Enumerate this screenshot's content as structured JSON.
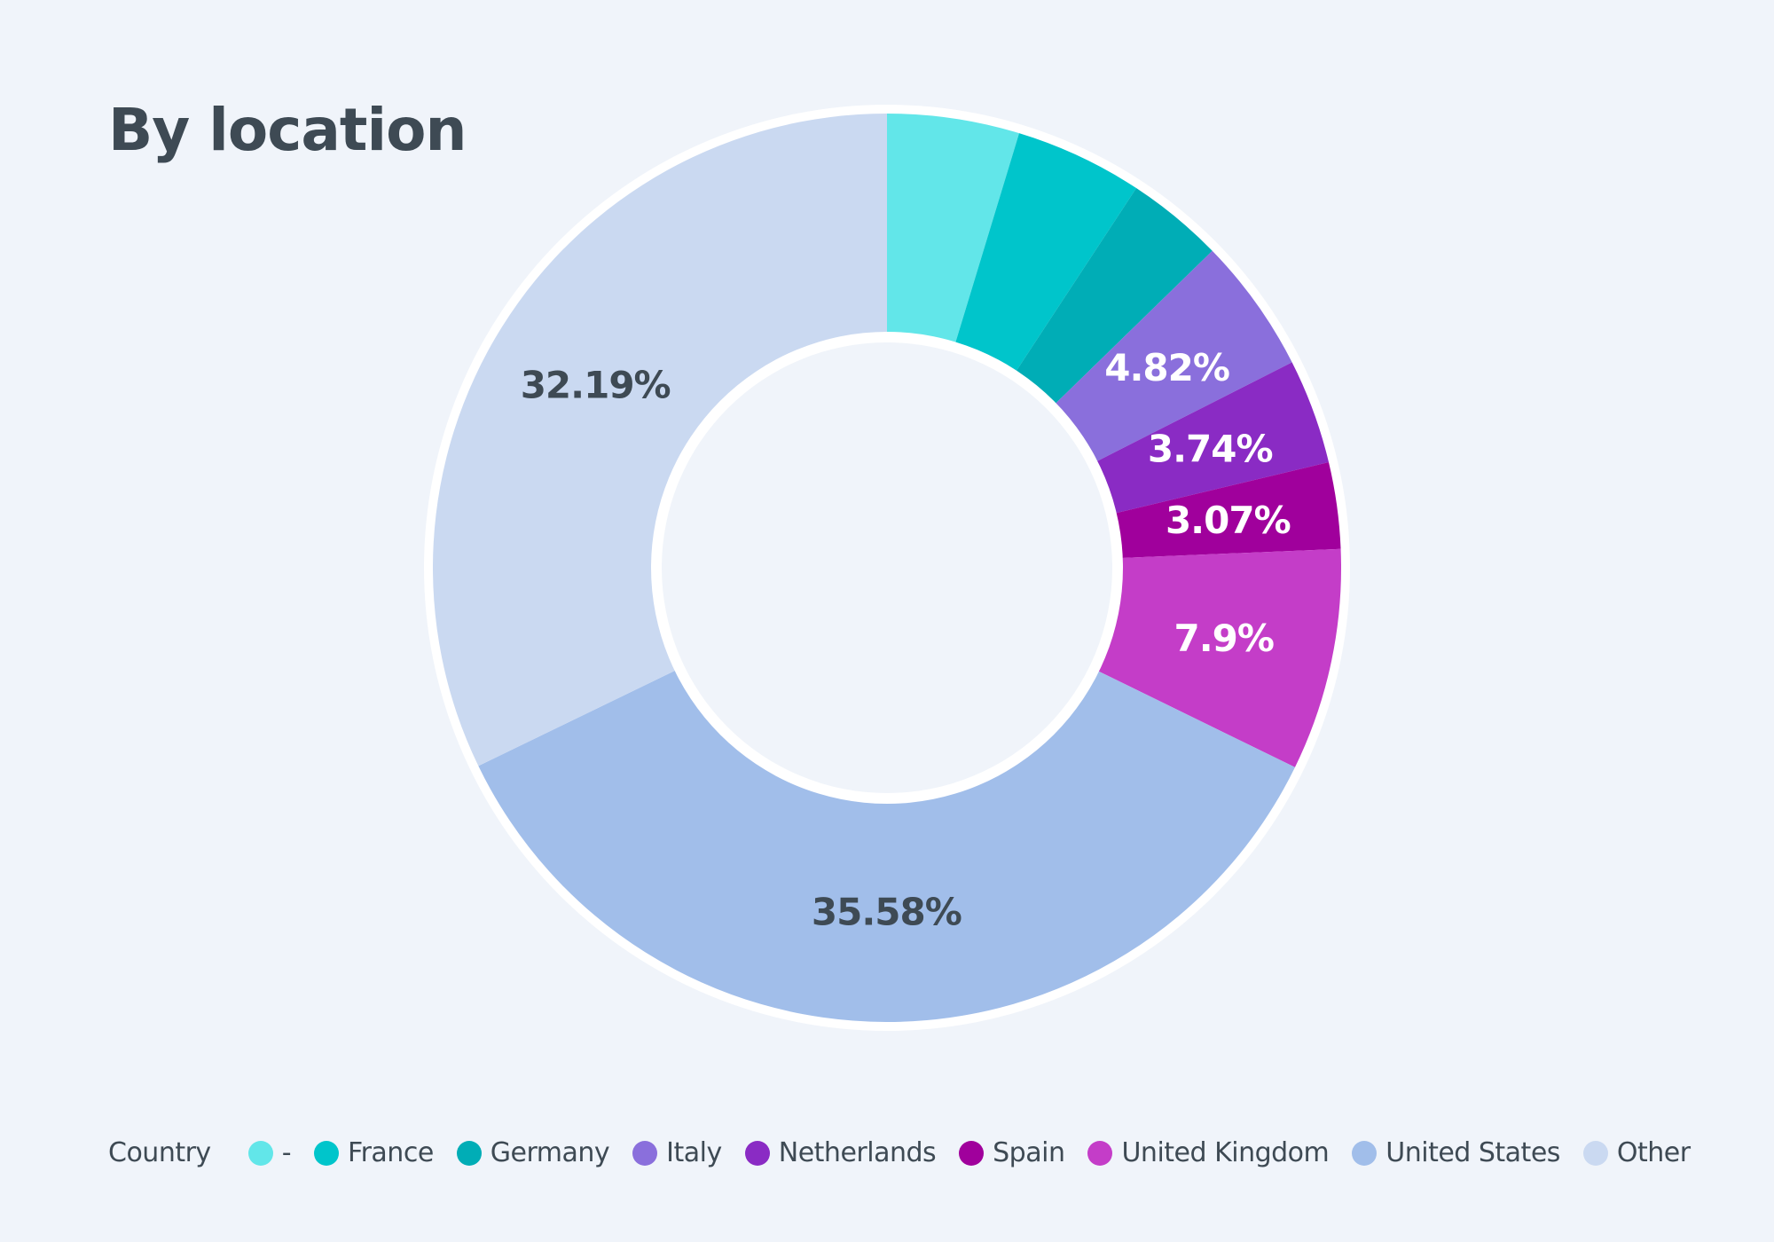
{
  "title": "By location",
  "chart_data": {
    "type": "pie",
    "legend_title": "Country",
    "legend_position": "bottom-left",
    "slices": [
      {
        "label": "-",
        "value": 4.7,
        "display": "",
        "color": "#62e6e9",
        "label_color": "#ffffff"
      },
      {
        "label": "France",
        "value": 4.55,
        "display": "",
        "color": "#00c5cb",
        "label_color": "#ffffff"
      },
      {
        "label": "Germany",
        "value": 3.46,
        "display": "",
        "color": "#00adb6",
        "label_color": "#ffffff"
      },
      {
        "label": "Italy",
        "value": 4.82,
        "display": "4.82%",
        "color": "#8a6fdc",
        "label_color": "#ffffff"
      },
      {
        "label": "Netherlands",
        "value": 3.74,
        "display": "3.74%",
        "color": "#8a2bc4",
        "label_color": "#ffffff"
      },
      {
        "label": "Spain",
        "value": 3.07,
        "display": "3.07%",
        "color": "#a0009c",
        "label_color": "#ffffff"
      },
      {
        "label": "United Kingdom",
        "value": 7.9,
        "display": "7.9%",
        "color": "#c43dc8",
        "label_color": "#ffffff"
      },
      {
        "label": "United States",
        "value": 35.58,
        "display": "35.58%",
        "color": "#a1beea",
        "label_color": "#3e4a54"
      },
      {
        "label": "Other",
        "value": 32.19,
        "display": "32.19%",
        "color": "#cad9f1",
        "label_color": "#3e4a54"
      }
    ]
  }
}
